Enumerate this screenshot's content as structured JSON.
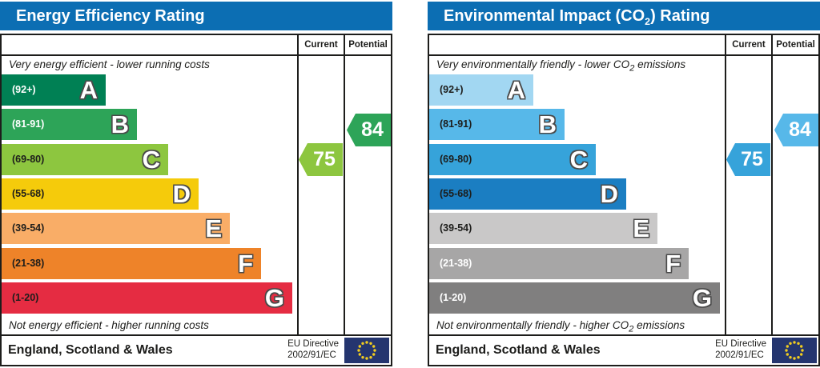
{
  "colors": {
    "header_bg": "#0c6eb3",
    "header_text": "#ffffff",
    "border": "#1d1d1b",
    "letter_outline": "#4a4a4a",
    "eu_flag_field": "#24356f",
    "eu_flag_stars": "#f2cd1f"
  },
  "charts": [
    {
      "id": "energy-efficiency",
      "title_pre": "Energy Efficiency Rating",
      "title_sub": "",
      "title_post": "",
      "columns": [
        "Current",
        "Potential"
      ],
      "top_caption_pre": "Very energy efficient - lower running costs",
      "top_caption_sub": "",
      "top_caption_post": "",
      "bottom_caption_pre": "Not energy efficient - higher running costs",
      "bottom_caption_sub": "",
      "bottom_caption_post": "",
      "bands": [
        {
          "letter": "A",
          "range": "(92+)",
          "color": "#008054",
          "label_color": "#ffffff"
        },
        {
          "letter": "B",
          "range": "(81-91)",
          "color": "#2da458",
          "label_color": "#ffffff"
        },
        {
          "letter": "C",
          "range": "(69-80)",
          "color": "#8dc63f",
          "label_color": "#1d1d1b"
        },
        {
          "letter": "D",
          "range": "(55-68)",
          "color": "#f5cb0b",
          "label_color": "#1d1d1b"
        },
        {
          "letter": "E",
          "range": "(39-54)",
          "color": "#f9ad67",
          "label_color": "#1d1d1b"
        },
        {
          "letter": "F",
          "range": "(21-38)",
          "color": "#ee8329",
          "label_color": "#1d1d1b"
        },
        {
          "letter": "G",
          "range": "(1-20)",
          "color": "#e52c42",
          "label_color": "#1d1d1b"
        }
      ],
      "current": {
        "value": "75",
        "band_index": 2,
        "color": "#8dc63f"
      },
      "potential": {
        "value": "84",
        "band_index": 1,
        "color": "#2da458"
      },
      "footer": {
        "region": "England, Scotland & Wales",
        "directive_line1": "EU Directive",
        "directive_line2": "2002/91/EC"
      }
    },
    {
      "id": "environmental-impact",
      "title_pre": "Environmental Impact (CO",
      "title_sub": "2",
      "title_post": ") Rating",
      "columns": [
        "Current",
        "Potential"
      ],
      "top_caption_pre": "Very environmentally friendly - lower CO",
      "top_caption_sub": "2",
      "top_caption_post": " emissions",
      "bottom_caption_pre": "Not environmentally friendly - higher CO",
      "bottom_caption_sub": "2",
      "bottom_caption_post": " emissions",
      "bands": [
        {
          "letter": "A",
          "range": "(92+)",
          "color": "#a2d7f2",
          "label_color": "#1d1d1b"
        },
        {
          "letter": "B",
          "range": "(81-91)",
          "color": "#57b8e9",
          "label_color": "#1d1d1b"
        },
        {
          "letter": "C",
          "range": "(69-80)",
          "color": "#36a3da",
          "label_color": "#1d1d1b"
        },
        {
          "letter": "D",
          "range": "(55-68)",
          "color": "#1b7ec2",
          "label_color": "#1d1d1b"
        },
        {
          "letter": "E",
          "range": "(39-54)",
          "color": "#c9c8c8",
          "label_color": "#1d1d1b"
        },
        {
          "letter": "F",
          "range": "(21-38)",
          "color": "#a7a6a6",
          "label_color": "#ffffff"
        },
        {
          "letter": "G",
          "range": "(1-20)",
          "color": "#807f7f",
          "label_color": "#ffffff"
        }
      ],
      "current": {
        "value": "75",
        "band_index": 2,
        "color": "#36a3da"
      },
      "potential": {
        "value": "84",
        "band_index": 1,
        "color": "#57b8e9"
      },
      "footer": {
        "region": "England, Scotland & Wales",
        "directive_line1": "EU Directive",
        "directive_line2": "2002/91/EC"
      }
    }
  ],
  "chart_data": [
    {
      "type": "bar",
      "subtype": "epc-rating-bands",
      "title": "Energy Efficiency Rating",
      "categories": [
        "A (92+)",
        "B (81-91)",
        "C (69-80)",
        "D (55-68)",
        "E (39-54)",
        "F (21-38)",
        "G (1-20)"
      ],
      "band_colors": [
        "#008054",
        "#2da458",
        "#8dc63f",
        "#f5cb0b",
        "#f9ad67",
        "#ee8329",
        "#e52c42"
      ],
      "current": {
        "value": 75,
        "band": "C"
      },
      "potential": {
        "value": 84,
        "band": "B"
      },
      "annotation_top": "Very energy efficient - lower running costs",
      "annotation_bottom": "Not energy efficient - higher running costs",
      "region": "England, Scotland & Wales",
      "directive": "EU Directive 2002/91/EC"
    },
    {
      "type": "bar",
      "subtype": "epc-rating-bands",
      "title": "Environmental Impact (CO2) Rating",
      "categories": [
        "A (92+)",
        "B (81-91)",
        "C (69-80)",
        "D (55-68)",
        "E (39-54)",
        "F (21-38)",
        "G (1-20)"
      ],
      "band_colors": [
        "#a2d7f2",
        "#57b8e9",
        "#36a3da",
        "#1b7ec2",
        "#c9c8c8",
        "#a7a6a6",
        "#807f7f"
      ],
      "current": {
        "value": 75,
        "band": "C"
      },
      "potential": {
        "value": 84,
        "band": "B"
      },
      "annotation_top": "Very environmentally friendly - lower CO2 emissions",
      "annotation_bottom": "Not environmentally friendly - higher CO2 emissions",
      "region": "England, Scotland & Wales",
      "directive": "EU Directive 2002/91/EC"
    }
  ]
}
